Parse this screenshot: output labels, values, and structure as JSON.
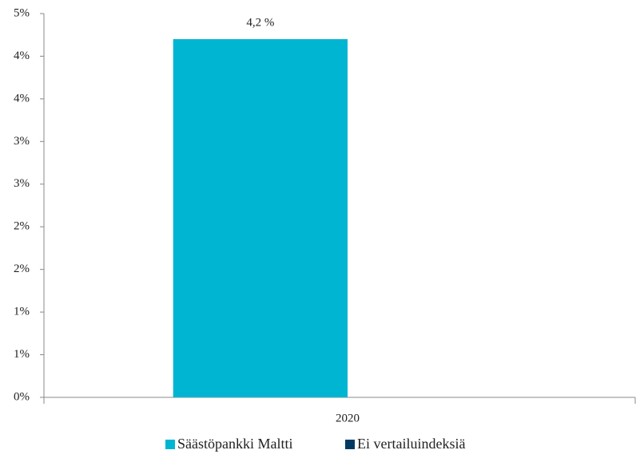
{
  "chart_data": {
    "type": "bar",
    "categories": [
      "2020"
    ],
    "series": [
      {
        "name": "Säästöpankki Maltti",
        "color": "#00b5d1",
        "values": [
          4.2
        ],
        "value_labels": [
          "4,2 %"
        ]
      },
      {
        "name": "Ei vertailuindeksiä",
        "color": "#003a63",
        "values": [
          null
        ]
      }
    ],
    "ylim": [
      0,
      4.5
    ],
    "yticks": [
      {
        "value": 0,
        "label": "0%"
      },
      {
        "value": 0.5,
        "label": "1%"
      },
      {
        "value": 1,
        "label": "1%"
      },
      {
        "value": 1.5,
        "label": "2%"
      },
      {
        "value": 2,
        "label": "2%"
      },
      {
        "value": 2.5,
        "label": "3%"
      },
      {
        "value": 3,
        "label": "3%"
      },
      {
        "value": 3.5,
        "label": "4%"
      },
      {
        "value": 4,
        "label": "4%"
      },
      {
        "value": 4.5,
        "label": "5%"
      }
    ],
    "legend": "bottom"
  }
}
